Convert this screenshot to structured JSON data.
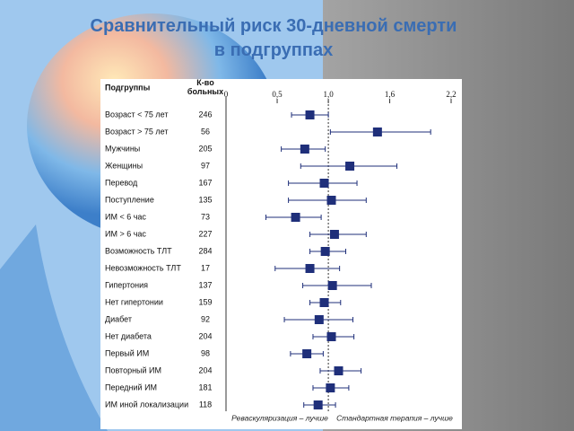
{
  "chart_data": {
    "type": "forest",
    "title": "Сравнительный риск 30-дневной смерти в подгруппах",
    "category_header": "Подгруппы",
    "count_header": "К-во больных",
    "categories": [
      "Возраст < 75 лет",
      "Возраст > 75 лет",
      "Мужчины",
      "Женщины",
      "Перевод",
      "Поступление",
      "ИМ < 6 час",
      "ИМ > 6 час",
      "Возможность ТЛТ",
      "Невозможность ТЛТ",
      "Гипертония",
      "Нет гипертонии",
      "Диабет",
      "Нет диабета",
      "Первый ИМ",
      "Повторный ИМ",
      "Передний ИМ",
      "ИМ иной локализации"
    ],
    "counts": [
      246,
      56,
      205,
      97,
      167,
      135,
      73,
      227,
      284,
      17,
      137,
      159,
      92,
      204,
      98,
      204,
      181,
      118
    ],
    "values": [
      0.82,
      1.48,
      0.77,
      1.21,
      0.96,
      1.03,
      0.68,
      1.06,
      0.97,
      0.82,
      1.04,
      0.96,
      0.91,
      1.03,
      0.79,
      1.1,
      1.02,
      0.9
    ],
    "ci_low": [
      0.64,
      1.02,
      0.54,
      0.73,
      0.61,
      0.61,
      0.39,
      0.82,
      0.82,
      0.48,
      0.75,
      0.82,
      0.57,
      0.85,
      0.63,
      0.92,
      0.85,
      0.76
    ],
    "ci_high": [
      1.0,
      2.0,
      0.97,
      1.67,
      1.28,
      1.37,
      0.93,
      1.37,
      1.17,
      1.11,
      1.42,
      1.12,
      1.24,
      1.25,
      0.95,
      1.32,
      1.2,
      1.07
    ],
    "color": "#1f2f7a",
    "xlim": [
      0,
      2.2
    ],
    "xticks": [
      0,
      {
        "value": 0.5,
        "label": "0,5"
      },
      {
        "value": 1.0,
        "label": "1,0"
      },
      {
        "value": 1.6,
        "label": "1,6"
      },
      {
        "value": 2.2,
        "label": "2,2"
      }
    ],
    "reference_tick": 2,
    "left_note": "Реваскуляризация – лучше",
    "right_note": "Стандартная терапия – лучше"
  }
}
